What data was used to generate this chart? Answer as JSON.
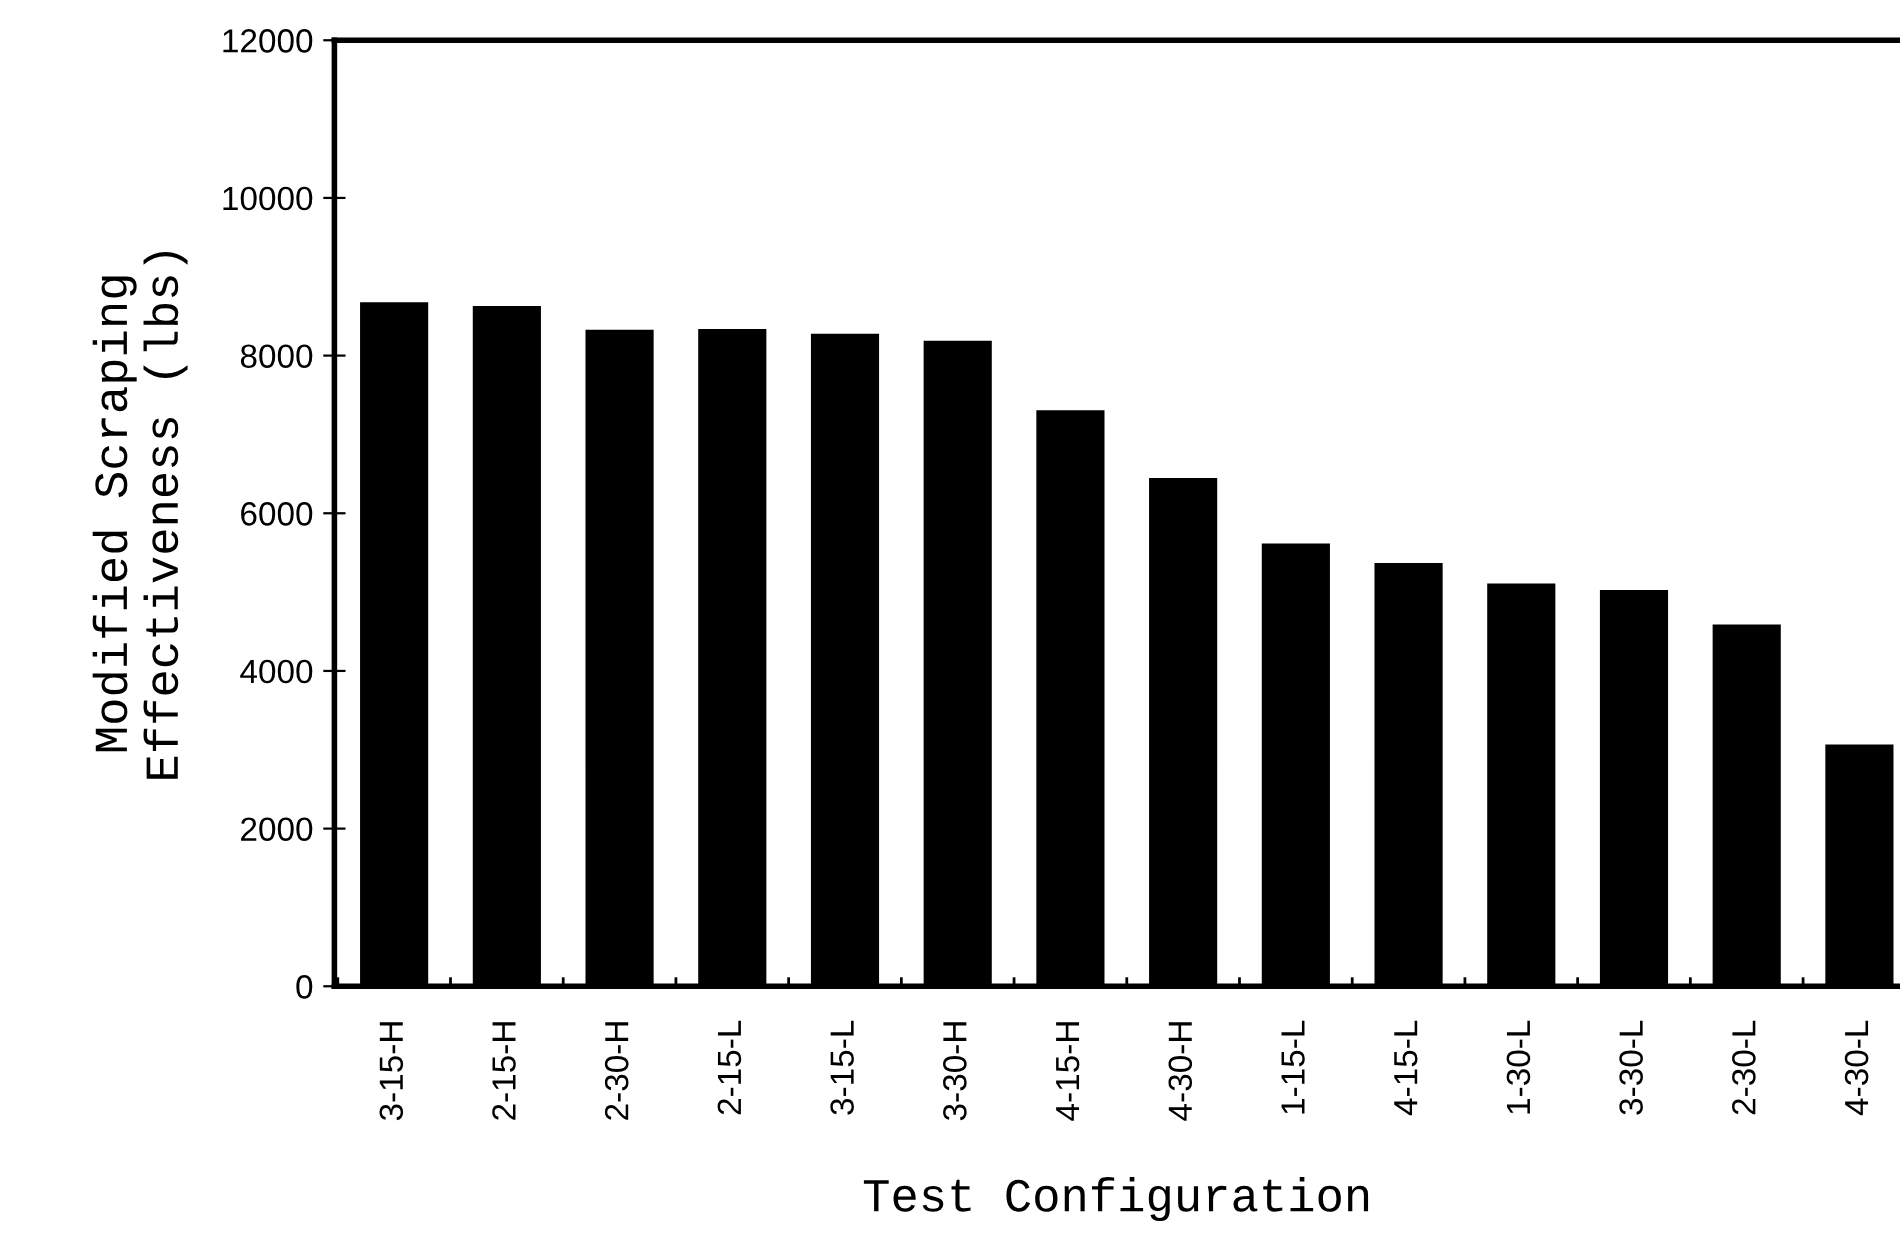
{
  "chart_data": {
    "type": "bar",
    "xlabel": "Test Configuration",
    "ylabel": "Modified Scraping\nEffectiveness (lbs)",
    "categories": [
      "3-15-H",
      "2-15-H",
      "2-30-H",
      "2-15-L",
      "3-15-L",
      "3-30-H",
      "4-15-H",
      "4-30-H",
      "1-15-L",
      "4-15-L",
      "1-30-L",
      "3-30-L",
      "2-30-L",
      "4-30-L"
    ],
    "values": [
      8660,
      8610,
      8310,
      8320,
      8260,
      8170,
      7290,
      6430,
      5600,
      5350,
      5090,
      5010,
      4570,
      3050
    ],
    "color": "#000000",
    "ylim": [
      0,
      12000
    ],
    "yticks": [
      0,
      2000,
      4000,
      6000,
      8000,
      10000,
      12000
    ],
    "grid": false,
    "legend": false
  }
}
